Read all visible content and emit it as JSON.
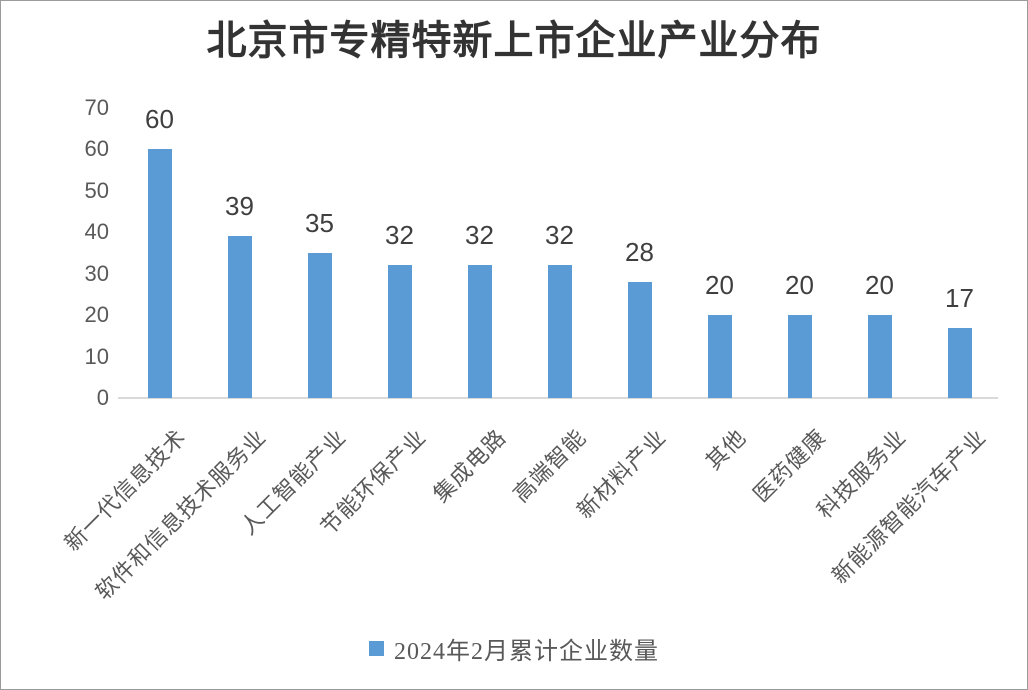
{
  "chart_data": {
    "type": "bar",
    "title": "北京市专精特新上市企业产业分布",
    "legend": "2024年2月累计企业数量",
    "legend_position": "bottom",
    "categories": [
      "新一代信息技术",
      "软件和信息技术服务业",
      "人工智能产业",
      "节能环保产业",
      "集成电路",
      "高端智能",
      "新材料产业",
      "其他",
      "医药健康",
      "科技服务业",
      "新能源智能汽车产业"
    ],
    "values": [
      60,
      39,
      35,
      32,
      32,
      32,
      28,
      20,
      20,
      20,
      17
    ],
    "ylim": [
      0,
      70
    ],
    "yticks": [
      0,
      10,
      20,
      30,
      40,
      50,
      60,
      70
    ],
    "grid": false,
    "bars_have_data_labels": true,
    "category_label_rotation_deg": 45,
    "colors": {
      "bar": "#5B9BD5",
      "axis_line": "#D9D9D9",
      "tick_label": "#595959",
      "category_label": "#595959",
      "data_label": "#3F3F3F",
      "title": "#333333",
      "legend_text": "#595959",
      "frame_border": "#9B9B9B",
      "background": "#FFFFFF"
    }
  }
}
